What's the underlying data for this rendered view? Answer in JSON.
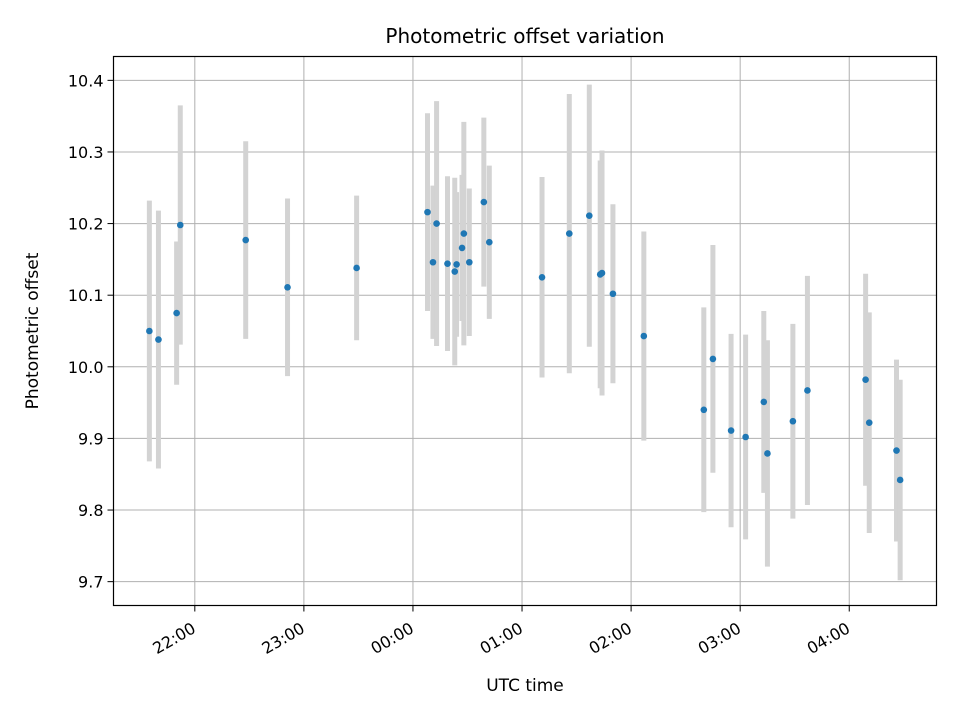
{
  "chart_data": {
    "type": "scatter",
    "title": "Photometric offset variation",
    "xlabel": "UTC time",
    "ylabel": "Photometric offset",
    "x_axis": "time",
    "x_ticks": [
      "22:00",
      "23:00",
      "00:00",
      "01:00",
      "02:00",
      "03:00",
      "04:00"
    ],
    "x_tick_hours": [
      22,
      23,
      24,
      25,
      26,
      27,
      28
    ],
    "xlim_hours": [
      21.2545,
      28.8
    ],
    "y_ticks": [
      9.7,
      9.8,
      9.9,
      10.0,
      10.1,
      10.2,
      10.3,
      10.4
    ],
    "ylim": [
      9.6667,
      10.4333
    ],
    "grid": true,
    "colors": {
      "point": "#1f77b4",
      "errorbar": "#d3d3d3",
      "grid": "#b0b0b0"
    },
    "points": [
      {
        "t": "21:35",
        "y": 10.05,
        "err": 0.182
      },
      {
        "t": "21:40",
        "y": 10.038,
        "err": 0.18
      },
      {
        "t": "21:50",
        "y": 10.075,
        "err": 0.1
      },
      {
        "t": "21:52",
        "y": 10.198,
        "err": 0.167
      },
      {
        "t": "22:28",
        "y": 10.177,
        "err": 0.138
      },
      {
        "t": "22:51",
        "y": 10.111,
        "err": 0.124
      },
      {
        "t": "23:29",
        "y": 10.138,
        "err": 0.101
      },
      {
        "t": "00:08",
        "y": 10.216,
        "err": 0.138
      },
      {
        "t": "00:11",
        "y": 10.146,
        "err": 0.107
      },
      {
        "t": "00:13",
        "y": 10.2,
        "err": 0.171
      },
      {
        "t": "00:19",
        "y": 10.144,
        "err": 0.122
      },
      {
        "t": "00:23",
        "y": 10.133,
        "err": 0.131
      },
      {
        "t": "00:24",
        "y": 10.143,
        "err": 0.101
      },
      {
        "t": "00:27",
        "y": 10.166,
        "err": 0.102
      },
      {
        "t": "00:28",
        "y": 10.186,
        "err": 0.156
      },
      {
        "t": "00:31",
        "y": 10.146,
        "err": 0.103
      },
      {
        "t": "00:39",
        "y": 10.23,
        "err": 0.118
      },
      {
        "t": "00:42",
        "y": 10.174,
        "err": 0.107
      },
      {
        "t": "01:11",
        "y": 10.125,
        "err": 0.14
      },
      {
        "t": "01:26",
        "y": 10.186,
        "err": 0.195
      },
      {
        "t": "01:37",
        "y": 10.211,
        "err": 0.183
      },
      {
        "t": "01:43",
        "y": 10.129,
        "err": 0.159
      },
      {
        "t": "01:44",
        "y": 10.131,
        "err": 0.171
      },
      {
        "t": "01:50",
        "y": 10.102,
        "err": 0.125
      },
      {
        "t": "02:07",
        "y": 10.043,
        "err": 0.146
      },
      {
        "t": "02:40",
        "y": 9.94,
        "err": 0.143
      },
      {
        "t": "02:45",
        "y": 10.011,
        "err": 0.159
      },
      {
        "t": "02:55",
        "y": 9.911,
        "err": 0.135
      },
      {
        "t": "03:03",
        "y": 9.902,
        "err": 0.143
      },
      {
        "t": "03:13",
        "y": 9.951,
        "err": 0.127
      },
      {
        "t": "03:15",
        "y": 9.879,
        "err": 0.158
      },
      {
        "t": "03:29",
        "y": 9.924,
        "err": 0.136
      },
      {
        "t": "03:37",
        "y": 9.967,
        "err": 0.16
      },
      {
        "t": "04:09",
        "y": 9.982,
        "err": 0.148
      },
      {
        "t": "04:11",
        "y": 9.922,
        "err": 0.154
      },
      {
        "t": "04:26",
        "y": 9.883,
        "err": 0.127
      },
      {
        "t": "04:28",
        "y": 9.842,
        "err": 0.14
      }
    ]
  }
}
